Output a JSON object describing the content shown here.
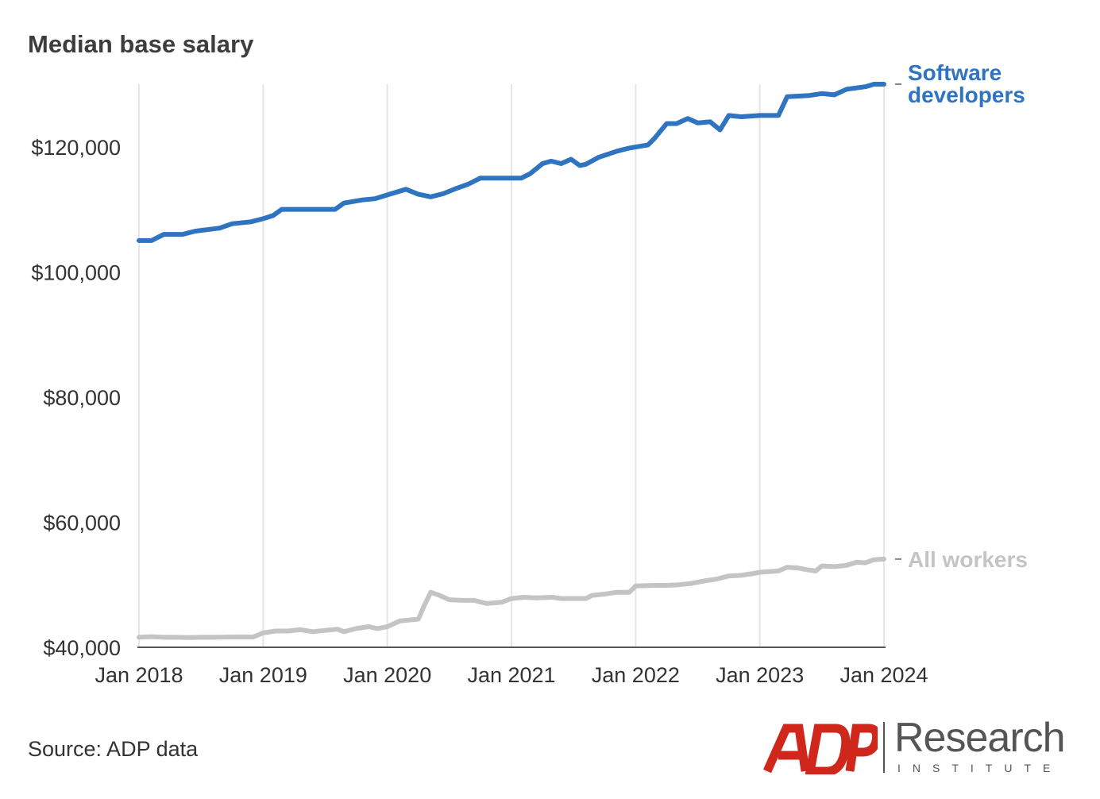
{
  "title": "Median base salary",
  "source": "Source: ADP data",
  "brand": {
    "mark": "ADP",
    "name": "Research",
    "sub": "INSTITUTE",
    "color": "#d0271d"
  },
  "colors": {
    "software": "#2e74c0",
    "all": "#c4c4c4",
    "grid": "#e6e6e6",
    "axis": "#555555"
  },
  "chart_data": {
    "type": "line",
    "title": "Median base salary",
    "xlabel": "",
    "ylabel": "",
    "x_range": [
      2018.0,
      2024.0
    ],
    "ylim": [
      40000,
      130000
    ],
    "y_ticks": [
      {
        "value": 40000,
        "label": "$40,000"
      },
      {
        "value": 60000,
        "label": "$60,000"
      },
      {
        "value": 80000,
        "label": "$80,000"
      },
      {
        "value": 100000,
        "label": "$100,000"
      },
      {
        "value": 120000,
        "label": "$120,000"
      }
    ],
    "x_ticks": [
      {
        "value": 2018,
        "label": "Jan 2018"
      },
      {
        "value": 2019,
        "label": "Jan 2019"
      },
      {
        "value": 2020,
        "label": "Jan 2020"
      },
      {
        "value": 2021,
        "label": "Jan 2021"
      },
      {
        "value": 2022,
        "label": "Jan 2022"
      },
      {
        "value": 2023,
        "label": "Jan 2023"
      },
      {
        "value": 2024,
        "label": "Jan 2024"
      }
    ],
    "grid": "vertical",
    "series": [
      {
        "name": "Software developers",
        "label_lines": [
          "Software",
          "developers"
        ],
        "color": "#2e74c0",
        "points": [
          [
            2018.0,
            105000
          ],
          [
            2018.1,
            105000
          ],
          [
            2018.2,
            106000
          ],
          [
            2018.35,
            106000
          ],
          [
            2018.45,
            106500
          ],
          [
            2018.65,
            107000
          ],
          [
            2018.75,
            107700
          ],
          [
            2018.9,
            108000
          ],
          [
            2019.0,
            108500
          ],
          [
            2019.08,
            109000
          ],
          [
            2019.15,
            110000
          ],
          [
            2019.35,
            110000
          ],
          [
            2019.58,
            110000
          ],
          [
            2019.65,
            111000
          ],
          [
            2019.8,
            111500
          ],
          [
            2019.9,
            111700
          ],
          [
            2020.0,
            112300
          ],
          [
            2020.15,
            113200
          ],
          [
            2020.25,
            112400
          ],
          [
            2020.35,
            112000
          ],
          [
            2020.45,
            112500
          ],
          [
            2020.55,
            113300
          ],
          [
            2020.65,
            114000
          ],
          [
            2020.75,
            115000
          ],
          [
            2020.9,
            115000
          ],
          [
            2021.0,
            115000
          ],
          [
            2021.08,
            115000
          ],
          [
            2021.15,
            115700
          ],
          [
            2021.25,
            117300
          ],
          [
            2021.32,
            117700
          ],
          [
            2021.4,
            117300
          ],
          [
            2021.48,
            118000
          ],
          [
            2021.55,
            117000
          ],
          [
            2021.6,
            117200
          ],
          [
            2021.7,
            118300
          ],
          [
            2021.85,
            119300
          ],
          [
            2021.95,
            119800
          ],
          [
            2022.1,
            120300
          ],
          [
            2022.15,
            121300
          ],
          [
            2022.25,
            123700
          ],
          [
            2022.33,
            123700
          ],
          [
            2022.42,
            124500
          ],
          [
            2022.5,
            123800
          ],
          [
            2022.6,
            124000
          ],
          [
            2022.68,
            122700
          ],
          [
            2022.75,
            125000
          ],
          [
            2022.85,
            124800
          ],
          [
            2023.0,
            125000
          ],
          [
            2023.15,
            125000
          ],
          [
            2023.22,
            128000
          ],
          [
            2023.4,
            128200
          ],
          [
            2023.5,
            128500
          ],
          [
            2023.6,
            128300
          ],
          [
            2023.7,
            129200
          ],
          [
            2023.85,
            129600
          ],
          [
            2023.92,
            130000
          ],
          [
            2024.0,
            130000
          ]
        ]
      },
      {
        "name": "All workers",
        "label_lines": [
          "All workers"
        ],
        "color": "#c4c4c4",
        "points": [
          [
            2018.0,
            41600
          ],
          [
            2018.1,
            41700
          ],
          [
            2018.2,
            41600
          ],
          [
            2018.3,
            41600
          ],
          [
            2018.4,
            41550
          ],
          [
            2018.5,
            41600
          ],
          [
            2018.6,
            41600
          ],
          [
            2018.75,
            41650
          ],
          [
            2018.92,
            41650
          ],
          [
            2019.0,
            42300
          ],
          [
            2019.1,
            42600
          ],
          [
            2019.2,
            42600
          ],
          [
            2019.3,
            42800
          ],
          [
            2019.4,
            42500
          ],
          [
            2019.5,
            42700
          ],
          [
            2019.6,
            42900
          ],
          [
            2019.65,
            42500
          ],
          [
            2019.75,
            43000
          ],
          [
            2019.85,
            43300
          ],
          [
            2019.92,
            43000
          ],
          [
            2020.0,
            43300
          ],
          [
            2020.1,
            44200
          ],
          [
            2020.25,
            44500
          ],
          [
            2020.3,
            46800
          ],
          [
            2020.35,
            48800
          ],
          [
            2020.42,
            48300
          ],
          [
            2020.5,
            47600
          ],
          [
            2020.6,
            47500
          ],
          [
            2020.7,
            47500
          ],
          [
            2020.8,
            47000
          ],
          [
            2020.92,
            47200
          ],
          [
            2021.0,
            47800
          ],
          [
            2021.1,
            48000
          ],
          [
            2021.2,
            47900
          ],
          [
            2021.33,
            48000
          ],
          [
            2021.4,
            47800
          ],
          [
            2021.5,
            47800
          ],
          [
            2021.6,
            47800
          ],
          [
            2021.65,
            48300
          ],
          [
            2021.75,
            48500
          ],
          [
            2021.85,
            48800
          ],
          [
            2021.95,
            48800
          ],
          [
            2022.0,
            49800
          ],
          [
            2022.15,
            49900
          ],
          [
            2022.25,
            49900
          ],
          [
            2022.35,
            50000
          ],
          [
            2022.45,
            50200
          ],
          [
            2022.55,
            50600
          ],
          [
            2022.65,
            50900
          ],
          [
            2022.75,
            51400
          ],
          [
            2022.85,
            51500
          ],
          [
            2022.95,
            51800
          ],
          [
            2023.0,
            52000
          ],
          [
            2023.15,
            52200
          ],
          [
            2023.22,
            52800
          ],
          [
            2023.3,
            52700
          ],
          [
            2023.38,
            52400
          ],
          [
            2023.45,
            52200
          ],
          [
            2023.5,
            53000
          ],
          [
            2023.6,
            52900
          ],
          [
            2023.7,
            53100
          ],
          [
            2023.78,
            53600
          ],
          [
            2023.85,
            53500
          ],
          [
            2023.92,
            54000
          ],
          [
            2024.0,
            54100
          ]
        ]
      }
    ],
    "annotations": [
      "Software developers",
      "All workers"
    ]
  }
}
